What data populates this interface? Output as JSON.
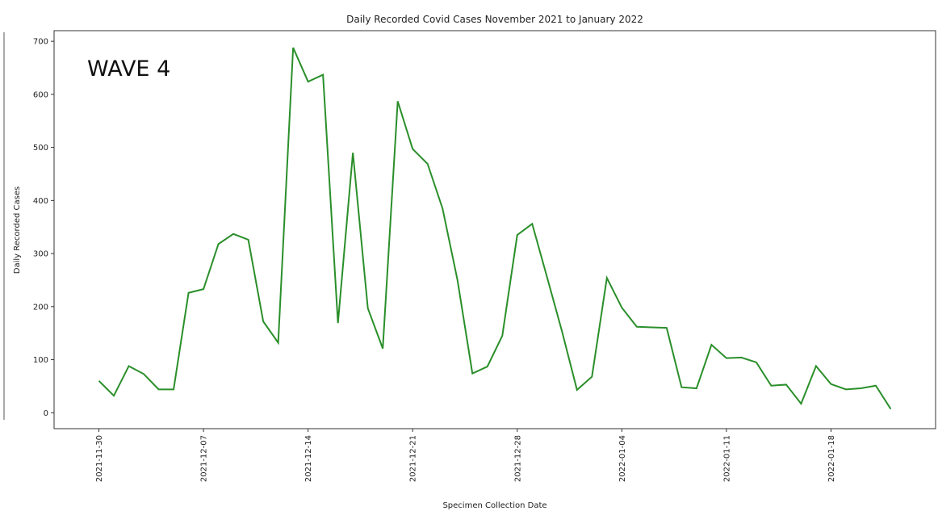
{
  "chart_data": {
    "type": "line",
    "title": "Daily Recorded Covid Cases November 2021 to January 2022",
    "xlabel": "Specimen Collection Date",
    "ylabel": "Daily Recorded Cases",
    "annotation": "WAVE 4",
    "x": [
      "2021-11-30",
      "2021-12-01",
      "2021-12-02",
      "2021-12-03",
      "2021-12-04",
      "2021-12-05",
      "2021-12-06",
      "2021-12-07",
      "2021-12-08",
      "2021-12-09",
      "2021-12-10",
      "2021-12-11",
      "2021-12-12",
      "2021-12-13",
      "2021-12-14",
      "2021-12-15",
      "2021-12-16",
      "2021-12-17",
      "2021-12-18",
      "2021-12-19",
      "2021-12-20",
      "2021-12-21",
      "2021-12-22",
      "2021-12-23",
      "2021-12-24",
      "2021-12-25",
      "2021-12-26",
      "2021-12-27",
      "2021-12-28",
      "2021-12-29",
      "2021-12-30",
      "2021-12-31",
      "2022-01-01",
      "2022-01-02",
      "2022-01-03",
      "2022-01-04",
      "2022-01-05",
      "2022-01-06",
      "2022-01-07",
      "2022-01-08",
      "2022-01-09",
      "2022-01-10",
      "2022-01-11",
      "2022-01-12",
      "2022-01-13",
      "2022-01-14",
      "2022-01-15",
      "2022-01-16",
      "2022-01-17",
      "2022-01-18",
      "2022-01-19",
      "2022-01-20",
      "2022-01-21",
      "2022-01-22"
    ],
    "series": [
      {
        "name": "Daily Recorded Cases",
        "color": "#2a8f2a",
        "values": [
          60,
          32,
          88,
          73,
          44,
          44,
          226,
          233,
          318,
          337,
          326,
          172,
          132,
          688,
          624,
          637,
          169,
          490,
          197,
          121,
          587,
          497,
          469,
          385,
          250,
          74,
          87,
          145,
          335,
          356,
          255,
          153,
          43,
          68,
          254,
          198,
          162,
          161,
          160,
          48,
          46,
          128,
          103,
          104,
          95,
          51,
          53,
          17,
          88,
          54,
          44,
          46,
          51,
          7
        ]
      }
    ],
    "xlim": [
      "2021-11-27",
      "2022-01-25"
    ],
    "xticks": [
      "2021-11-30",
      "2021-12-07",
      "2021-12-14",
      "2021-12-21",
      "2021-12-28",
      "2022-01-04",
      "2022-01-11",
      "2022-01-18"
    ],
    "ylim": [
      -30,
      720
    ],
    "yticks": [
      0,
      100,
      200,
      300,
      400,
      500,
      600,
      700
    ]
  }
}
